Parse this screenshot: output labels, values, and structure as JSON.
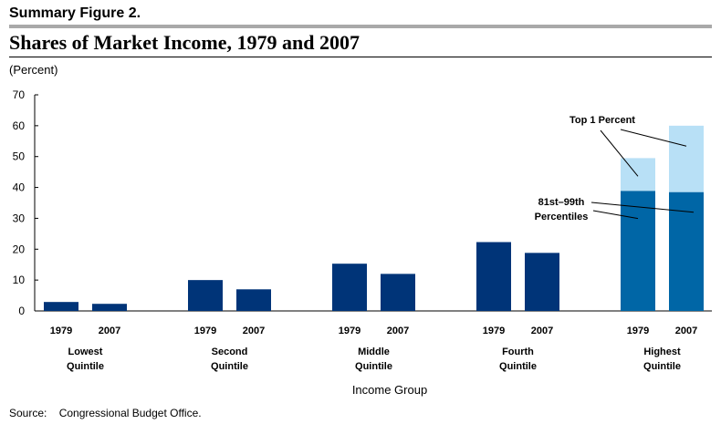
{
  "header": {
    "figure_label": "Summary Figure 2.",
    "title": "Shares of Market Income, 1979 and 2007",
    "unit": "(Percent)"
  },
  "footer": {
    "source_label": "Source:",
    "source_text": "Congressional Budget Office."
  },
  "colors": {
    "bar": "#003478",
    "bar_highest": "#0066a6",
    "top_segment": "#b8e0f6"
  },
  "chart_data": {
    "type": "bar",
    "stacked": true,
    "title": "Shares of Market Income, 1979 and 2007",
    "ylabel": "(Percent)",
    "xlabel": "Income Group",
    "ylim": [
      0,
      70
    ],
    "yticks": [
      0,
      10,
      20,
      30,
      40,
      50,
      60,
      70
    ],
    "grid": false,
    "legend": "inline annotations",
    "groups": [
      {
        "label": [
          "Lowest",
          "Quintile"
        ],
        "bars": [
          {
            "year": "1979",
            "segments": [
              2.9
            ]
          },
          {
            "year": "2007",
            "segments": [
              2.3
            ]
          }
        ]
      },
      {
        "label": [
          "Second",
          "Quintile"
        ],
        "bars": [
          {
            "year": "1979",
            "segments": [
              10.0
            ]
          },
          {
            "year": "2007",
            "segments": [
              7.0
            ]
          }
        ]
      },
      {
        "label": [
          "Middle",
          "Quintile"
        ],
        "bars": [
          {
            "year": "1979",
            "segments": [
              15.3
            ]
          },
          {
            "year": "2007",
            "segments": [
              12.0
            ]
          }
        ]
      },
      {
        "label": [
          "Fourth",
          "Quintile"
        ],
        "bars": [
          {
            "year": "1979",
            "segments": [
              22.3
            ]
          },
          {
            "year": "2007",
            "segments": [
              18.8
            ]
          }
        ]
      },
      {
        "label": [
          "Highest",
          "Quintile"
        ],
        "bars": [
          {
            "year": "1979",
            "segments": [
              38.9,
              10.6
            ]
          },
          {
            "year": "2007",
            "segments": [
              38.5,
              21.5
            ]
          }
        ]
      }
    ],
    "annotations": [
      {
        "lines": [
          "Top 1 Percent"
        ]
      },
      {
        "lines": [
          "81st–99th",
          "Percentiles"
        ]
      }
    ]
  }
}
